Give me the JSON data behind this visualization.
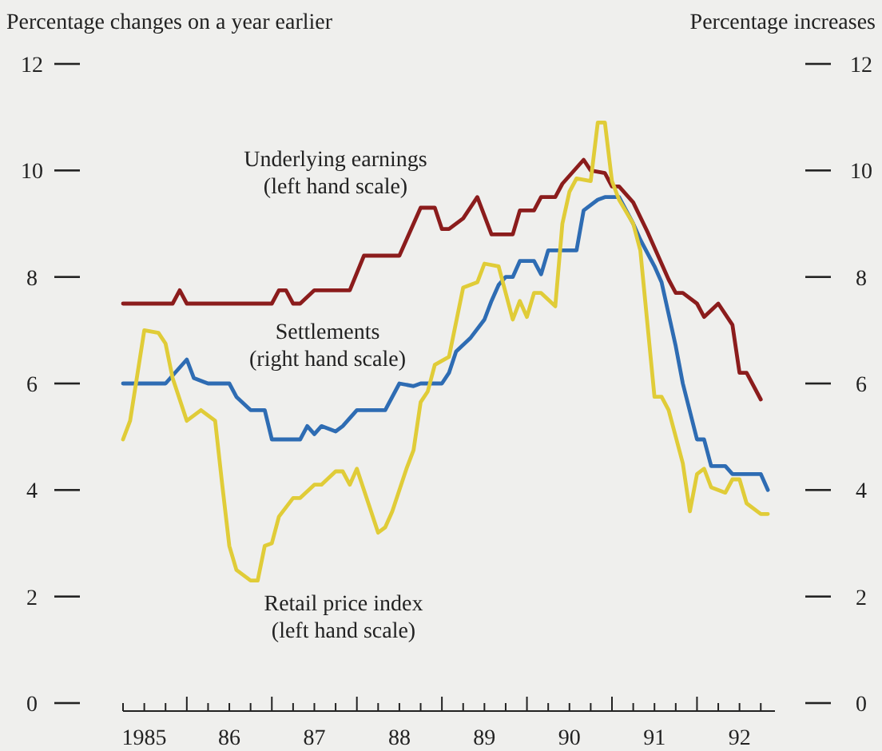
{
  "chart_data": {
    "type": "line",
    "ylabel": "Percentage changes on a year earlier",
    "y2label": "Percentage increases",
    "xlim": [
      "1985-04",
      "1992-12"
    ],
    "ylim": [
      0,
      12
    ],
    "y2lim": [
      0,
      12
    ],
    "yticks": [
      0,
      2,
      4,
      6,
      8,
      10,
      12
    ],
    "y2ticks": [
      0,
      2,
      4,
      6,
      8,
      10,
      12
    ],
    "xticks": [
      {
        "value": "1985-07",
        "label": "1985"
      },
      {
        "value": "1986-07",
        "label": "86"
      },
      {
        "value": "1987-07",
        "label": "87"
      },
      {
        "value": "1988-07",
        "label": "88"
      },
      {
        "value": "1989-07",
        "label": "89"
      },
      {
        "value": "1990-07",
        "label": "90"
      },
      {
        "value": "1991-07",
        "label": "91"
      },
      {
        "value": "1992-07",
        "label": "92"
      },
      {
        "value": "1985-04",
        "label": null
      },
      {
        "value": "1985-07",
        "label": null
      },
      {
        "value": "1985-10",
        "label": null
      },
      {
        "value": "1986-01",
        "label": null
      },
      {
        "value": "1986-04",
        "label": null
      },
      {
        "value": "1986-07",
        "label": null
      },
      {
        "value": "1986-10",
        "label": null
      },
      {
        "value": "1987-01",
        "label": null
      },
      {
        "value": "1987-04",
        "label": null
      },
      {
        "value": "1987-07",
        "label": null
      },
      {
        "value": "1987-10",
        "label": null
      },
      {
        "value": "1988-01",
        "label": null
      },
      {
        "value": "1988-04",
        "label": null
      },
      {
        "value": "1988-07",
        "label": null
      },
      {
        "value": "1988-10",
        "label": null
      },
      {
        "value": "1989-01",
        "label": null
      },
      {
        "value": "1989-04",
        "label": null
      },
      {
        "value": "1989-07",
        "label": null
      },
      {
        "value": "1989-10",
        "label": null
      },
      {
        "value": "1990-01",
        "label": null
      },
      {
        "value": "1990-04",
        "label": null
      },
      {
        "value": "1990-07",
        "label": null
      },
      {
        "value": "1990-10",
        "label": null
      },
      {
        "value": "1991-01",
        "label": null
      },
      {
        "value": "1991-04",
        "label": null
      },
      {
        "value": "1991-07",
        "label": null
      },
      {
        "value": "1991-10",
        "label": null
      },
      {
        "value": "1992-01",
        "label": null
      },
      {
        "value": "1992-04",
        "label": null
      },
      {
        "value": "1992-07",
        "label": null
      },
      {
        "value": "1992-10",
        "label": null
      }
    ],
    "marker": "none",
    "line_style": "solid",
    "series": [
      {
        "name": "Underlying earnings (left hand scale)",
        "color": "#8b1c1c",
        "x": [
          "1985-04",
          "1985-11",
          "1985-12",
          "1986-01",
          "1987-01",
          "1987-02",
          "1987-03",
          "1987-04",
          "1987-05",
          "1987-07",
          "1987-12",
          "1988-02",
          "1988-07",
          "1988-10",
          "1988-12",
          "1989-01",
          "1989-02",
          "1989-04",
          "1989-06",
          "1989-08",
          "1989-11",
          "1989-12",
          "1990-02",
          "1990-03",
          "1990-05",
          "1990-06",
          "1990-08",
          "1990-09",
          "1990-10",
          "1990-12",
          "1991-01",
          "1991-02",
          "1991-04",
          "1991-06",
          "1991-09",
          "1991-10",
          "1991-11",
          "1992-01",
          "1992-02",
          "1992-04",
          "1992-06",
          "1992-07",
          "1992-08",
          "1992-10"
        ],
        "values": [
          7.5,
          7.5,
          7.75,
          7.5,
          7.5,
          7.75,
          7.75,
          7.5,
          7.5,
          7.75,
          7.75,
          8.4,
          8.4,
          9.3,
          9.3,
          8.9,
          8.9,
          9.1,
          9.5,
          8.8,
          8.8,
          9.25,
          9.25,
          9.5,
          9.5,
          9.75,
          10.05,
          10.2,
          10.0,
          9.95,
          9.7,
          9.7,
          9.4,
          8.85,
          7.95,
          7.7,
          7.7,
          7.5,
          7.25,
          7.5,
          7.1,
          6.2,
          6.2,
          5.7
        ]
      },
      {
        "name": "Settlements (right hand scale)",
        "color": "#2e6cb3",
        "axis": "y2",
        "x": [
          "1985-04",
          "1985-10",
          "1986-01",
          "1986-02",
          "1986-04",
          "1986-07",
          "1986-08",
          "1986-10",
          "1986-12",
          "1987-01",
          "1987-05",
          "1987-06",
          "1987-07",
          "1987-08",
          "1987-10",
          "1987-11",
          "1988-01",
          "1988-05",
          "1988-07",
          "1988-09",
          "1988-10",
          "1989-01",
          "1989-02",
          "1989-03",
          "1989-05",
          "1989-07",
          "1989-08",
          "1989-09",
          "1989-10",
          "1989-11",
          "1989-12",
          "1990-02",
          "1990-03",
          "1990-04",
          "1990-08",
          "1990-09",
          "1990-11",
          "1990-12",
          "1991-02",
          "1991-04",
          "1991-05",
          "1991-07",
          "1991-08",
          "1991-10",
          "1991-11",
          "1992-01",
          "1992-02",
          "1992-03",
          "1992-05",
          "1992-06",
          "1992-10",
          "1992-11"
        ],
        "values": [
          6.0,
          6.0,
          6.45,
          6.1,
          6.0,
          6.0,
          5.75,
          5.5,
          5.5,
          4.95,
          4.95,
          5.2,
          5.05,
          5.2,
          5.1,
          5.2,
          5.5,
          5.5,
          6.0,
          5.95,
          6.0,
          6.0,
          6.2,
          6.6,
          6.85,
          7.2,
          7.55,
          7.85,
          8.0,
          8.0,
          8.3,
          8.3,
          8.05,
          8.5,
          8.5,
          9.25,
          9.45,
          9.5,
          9.5,
          9.0,
          8.7,
          8.2,
          7.9,
          6.7,
          6.0,
          4.95,
          4.95,
          4.45,
          4.45,
          4.3,
          4.3,
          4.0
        ]
      },
      {
        "name": "Retail price index (left hand scale)",
        "color": "#e0cc38",
        "x": [
          "1985-04",
          "1985-05",
          "1985-07",
          "1985-09",
          "1985-10",
          "1985-11",
          "1986-01",
          "1986-03",
          "1986-05",
          "1986-06",
          "1986-07",
          "1986-08",
          "1986-10",
          "1986-11",
          "1986-12",
          "1987-01",
          "1987-02",
          "1987-04",
          "1987-05",
          "1987-07",
          "1987-08",
          "1987-10",
          "1987-11",
          "1987-12",
          "1988-01",
          "1988-03",
          "1988-04",
          "1988-05",
          "1988-06",
          "1988-08",
          "1988-09",
          "1988-10",
          "1988-11",
          "1988-12",
          "1989-02",
          "1989-04",
          "1989-06",
          "1989-07",
          "1989-09",
          "1989-10",
          "1989-11",
          "1989-12",
          "1990-01",
          "1990-02",
          "1990-03",
          "1990-05",
          "1990-06",
          "1990-07",
          "1990-08",
          "1990-10",
          "1990-11",
          "1990-12",
          "1991-01",
          "1991-02",
          "1991-04",
          "1991-05",
          "1991-07",
          "1991-08",
          "1991-09",
          "1991-11",
          "1991-12",
          "1992-01",
          "1992-02",
          "1992-03",
          "1992-05",
          "1992-06",
          "1992-07",
          "1992-08",
          "1992-10",
          "1992-11"
        ],
        "values": [
          4.95,
          5.3,
          7.0,
          6.95,
          6.75,
          6.1,
          5.3,
          5.5,
          5.3,
          4.1,
          2.95,
          2.5,
          2.3,
          2.3,
          2.95,
          3.0,
          3.5,
          3.85,
          3.85,
          4.1,
          4.1,
          4.35,
          4.35,
          4.1,
          4.4,
          3.6,
          3.2,
          3.3,
          3.6,
          4.4,
          4.75,
          5.65,
          5.85,
          6.35,
          6.5,
          7.8,
          7.9,
          8.25,
          8.2,
          7.7,
          7.2,
          7.55,
          7.25,
          7.7,
          7.7,
          7.45,
          9.0,
          9.6,
          9.85,
          9.8,
          10.9,
          10.9,
          9.8,
          9.45,
          9.0,
          8.5,
          5.75,
          5.75,
          5.5,
          4.5,
          3.6,
          4.3,
          4.4,
          4.05,
          3.95,
          4.2,
          4.2,
          3.75,
          3.55,
          3.55
        ]
      }
    ]
  }
}
